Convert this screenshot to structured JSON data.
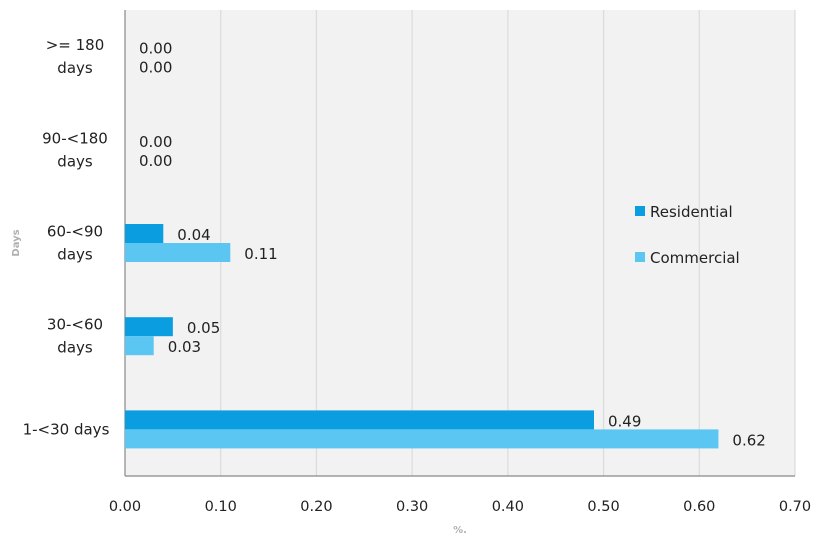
{
  "chart_data": {
    "type": "bar",
    "orientation": "horizontal",
    "categories": [
      "1-<30 days",
      "30-<60 days",
      "60-<90 days",
      "90-<180 days",
      ">= 180 days"
    ],
    "category_lines": [
      [
        "1-<30 days"
      ],
      [
        "30-<60",
        "days"
      ],
      [
        "60-<90",
        "days"
      ],
      [
        "90-<180",
        "days"
      ],
      [
        ">= 180",
        "days"
      ]
    ],
    "series": [
      {
        "name": "Residential",
        "color": "#0a9de0",
        "values": [
          0.49,
          0.05,
          0.04,
          0.0,
          0.0
        ],
        "labels": [
          "0.49",
          "0.05",
          "0.04",
          "0.00",
          "0.00"
        ]
      },
      {
        "name": "Commercial",
        "color": "#5bc6f2",
        "values": [
          0.62,
          0.03,
          0.11,
          0.0,
          0.0
        ],
        "labels": [
          "0.62",
          "0.03",
          "0.11",
          "0.00",
          "0.00"
        ]
      }
    ],
    "xlabel": "%.",
    "ylabel": "Days",
    "xlim": [
      0,
      0.7
    ],
    "xticks": [
      "0.00",
      "0.10",
      "0.20",
      "0.30",
      "0.40",
      "0.50",
      "0.60",
      "0.70"
    ],
    "grid": true,
    "legend_position": "right",
    "plot_background": "#f2f2f2",
    "grid_color": "#dcdcdc"
  }
}
